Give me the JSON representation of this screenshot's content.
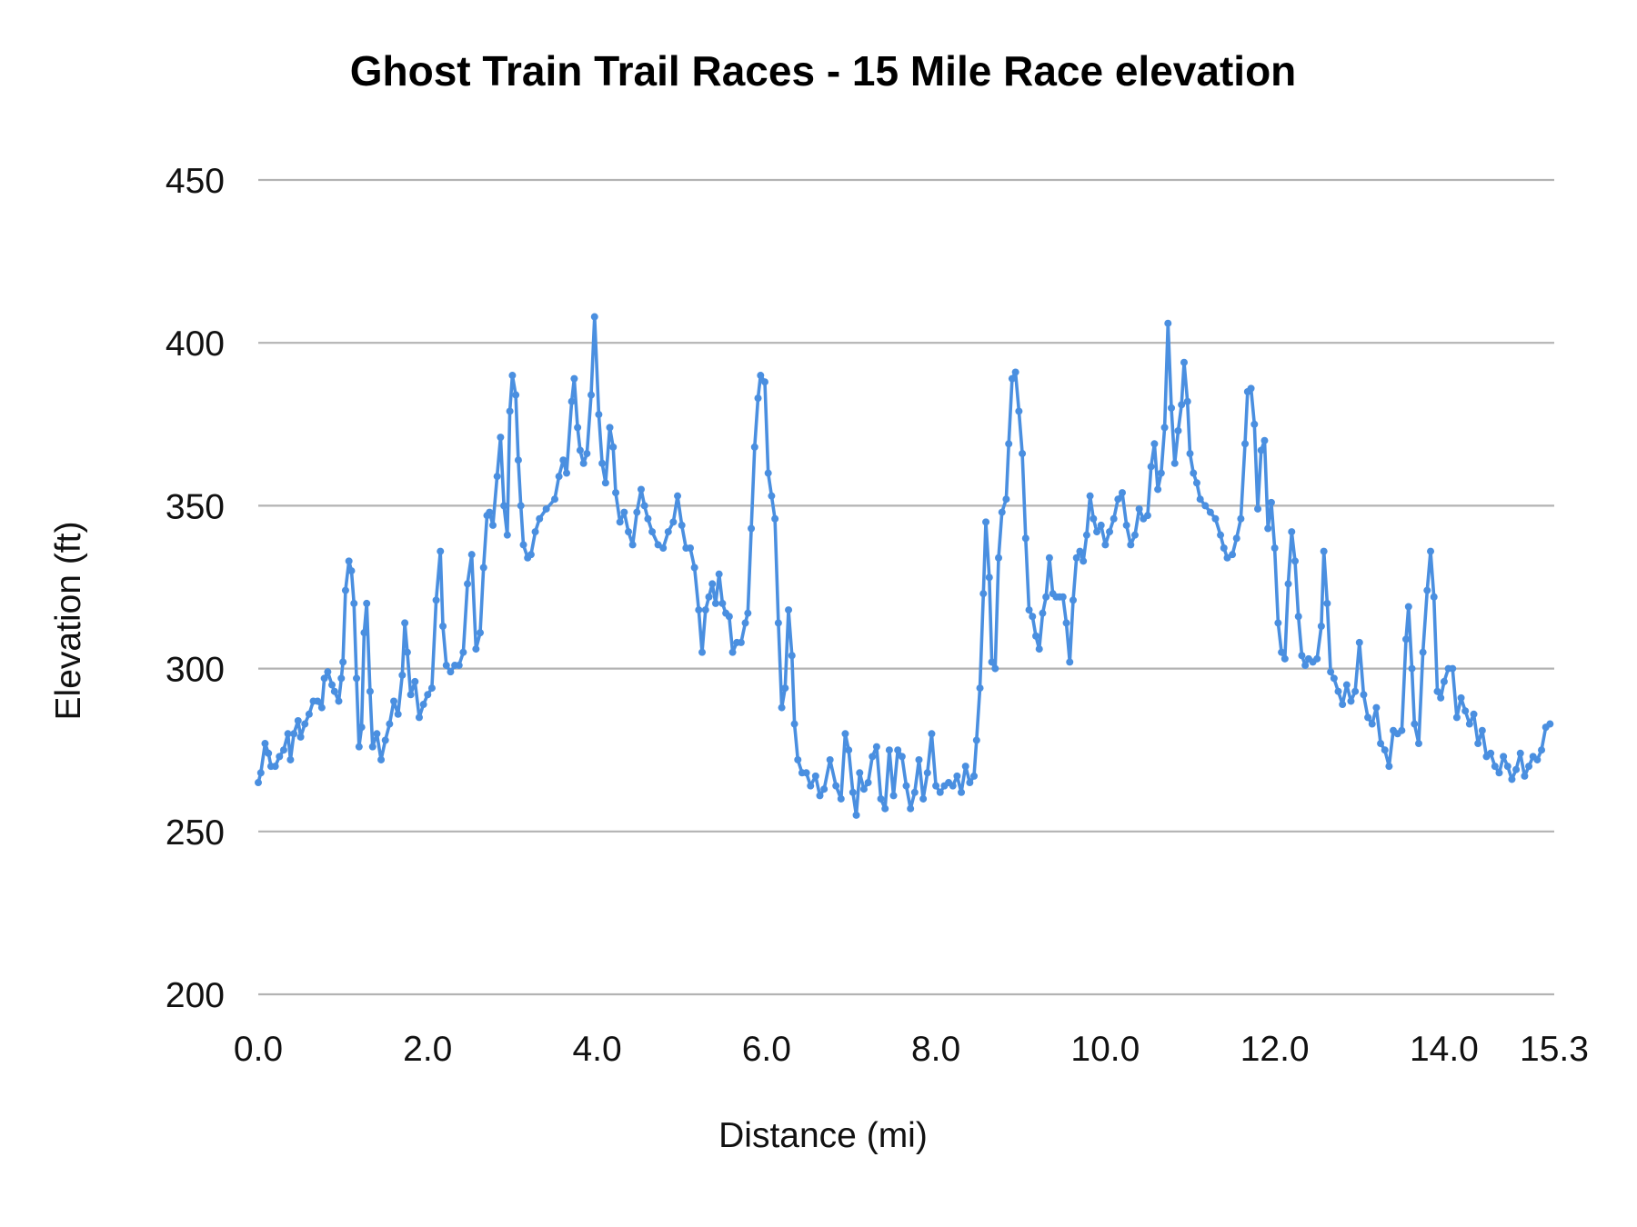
{
  "chart_data": {
    "type": "line",
    "title": "Ghost Train Trail Races - 15 Mile Race elevation",
    "xlabel": "Distance (mi)",
    "ylabel": "Elevation (ft)",
    "xlim": [
      0,
      15.3
    ],
    "ylim": [
      200,
      450
    ],
    "x_ticks": [
      "0.0",
      "2.0",
      "4.0",
      "6.0",
      "8.0",
      "10.0",
      "12.0",
      "14.0",
      "15.3"
    ],
    "x_tick_values": [
      0,
      2,
      4,
      6,
      8,
      10,
      12,
      14,
      15.3
    ],
    "y_ticks": [
      "200",
      "250",
      "300",
      "350",
      "400",
      "450"
    ],
    "y_tick_values": [
      200,
      250,
      300,
      350,
      400,
      450
    ],
    "grid": "horizontal",
    "legend": "none",
    "markers": true,
    "color": "#4a8fe0",
    "grid_color": "#b3b3b3",
    "points": [
      [
        0,
        265
      ],
      [
        0.03,
        268
      ],
      [
        0.08,
        277
      ],
      [
        0.12,
        274
      ],
      [
        0.15,
        270
      ],
      [
        0.2,
        270
      ],
      [
        0.25,
        273
      ],
      [
        0.3,
        275
      ],
      [
        0.35,
        280
      ],
      [
        0.38,
        272
      ],
      [
        0.42,
        280
      ],
      [
        0.47,
        284
      ],
      [
        0.5,
        279
      ],
      [
        0.55,
        283
      ],
      [
        0.6,
        286
      ],
      [
        0.65,
        290
      ],
      [
        0.7,
        290
      ],
      [
        0.75,
        288
      ],
      [
        0.78,
        297
      ],
      [
        0.82,
        299
      ],
      [
        0.87,
        295
      ],
      [
        0.9,
        293
      ],
      [
        0.95,
        290
      ],
      [
        0.98,
        297
      ],
      [
        1.0,
        302
      ],
      [
        1.03,
        324
      ],
      [
        1.07,
        333
      ],
      [
        1.1,
        330
      ],
      [
        1.13,
        320
      ],
      [
        1.16,
        297
      ],
      [
        1.19,
        276
      ],
      [
        1.22,
        282
      ],
      [
        1.25,
        311
      ],
      [
        1.28,
        320
      ],
      [
        1.32,
        293
      ],
      [
        1.35,
        276
      ],
      [
        1.4,
        280
      ],
      [
        1.45,
        272
      ],
      [
        1.5,
        278
      ],
      [
        1.55,
        283
      ],
      [
        1.6,
        290
      ],
      [
        1.65,
        286
      ],
      [
        1.7,
        298
      ],
      [
        1.73,
        314
      ],
      [
        1.76,
        305
      ],
      [
        1.8,
        292
      ],
      [
        1.85,
        296
      ],
      [
        1.9,
        285
      ],
      [
        1.95,
        289
      ],
      [
        2.0,
        292
      ],
      [
        2.05,
        294
      ],
      [
        2.1,
        321
      ],
      [
        2.15,
        336
      ],
      [
        2.18,
        313
      ],
      [
        2.22,
        301
      ],
      [
        2.27,
        299
      ],
      [
        2.32,
        301
      ],
      [
        2.37,
        301
      ],
      [
        2.42,
        305
      ],
      [
        2.47,
        326
      ],
      [
        2.52,
        335
      ],
      [
        2.57,
        306
      ],
      [
        2.62,
        311
      ],
      [
        2.66,
        331
      ],
      [
        2.7,
        347
      ],
      [
        2.73,
        348
      ],
      [
        2.77,
        344
      ],
      [
        2.82,
        359
      ],
      [
        2.86,
        371
      ],
      [
        2.9,
        350
      ],
      [
        2.94,
        341
      ],
      [
        2.97,
        379
      ],
      [
        3.0,
        390
      ],
      [
        3.04,
        384
      ],
      [
        3.07,
        364
      ],
      [
        3.1,
        350
      ],
      [
        3.13,
        338
      ],
      [
        3.18,
        334
      ],
      [
        3.22,
        335
      ],
      [
        3.27,
        342
      ],
      [
        3.32,
        346
      ],
      [
        3.4,
        349
      ],
      [
        3.5,
        352
      ],
      [
        3.55,
        359
      ],
      [
        3.6,
        364
      ],
      [
        3.64,
        360
      ],
      [
        3.7,
        382
      ],
      [
        3.73,
        389
      ],
      [
        3.77,
        374
      ],
      [
        3.8,
        367
      ],
      [
        3.84,
        363
      ],
      [
        3.88,
        366
      ],
      [
        3.93,
        384
      ],
      [
        3.97,
        408
      ],
      [
        4.02,
        378
      ],
      [
        4.06,
        363
      ],
      [
        4.1,
        357
      ],
      [
        4.15,
        374
      ],
      [
        4.19,
        368
      ],
      [
        4.22,
        354
      ],
      [
        4.27,
        345
      ],
      [
        4.32,
        348
      ],
      [
        4.37,
        342
      ],
      [
        4.42,
        338
      ],
      [
        4.47,
        348
      ],
      [
        4.52,
        355
      ],
      [
        4.56,
        350
      ],
      [
        4.6,
        346
      ],
      [
        4.65,
        342
      ],
      [
        4.72,
        338
      ],
      [
        4.78,
        337
      ],
      [
        4.84,
        342
      ],
      [
        4.9,
        345
      ],
      [
        4.95,
        353
      ],
      [
        5.0,
        344
      ],
      [
        5.05,
        337
      ],
      [
        5.1,
        337
      ],
      [
        5.15,
        331
      ],
      [
        5.2,
        318
      ],
      [
        5.24,
        305
      ],
      [
        5.28,
        318
      ],
      [
        5.32,
        322
      ],
      [
        5.36,
        326
      ],
      [
        5.4,
        320
      ],
      [
        5.44,
        329
      ],
      [
        5.48,
        320
      ],
      [
        5.52,
        317
      ],
      [
        5.56,
        316
      ],
      [
        5.6,
        305
      ],
      [
        5.65,
        308
      ],
      [
        5.7,
        308
      ],
      [
        5.75,
        314
      ],
      [
        5.78,
        317
      ],
      [
        5.82,
        343
      ],
      [
        5.86,
        368
      ],
      [
        5.9,
        383
      ],
      [
        5.93,
        390
      ],
      [
        5.98,
        388
      ],
      [
        6.02,
        360
      ],
      [
        6.06,
        353
      ],
      [
        6.1,
        346
      ],
      [
        6.14,
        314
      ],
      [
        6.18,
        288
      ],
      [
        6.22,
        294
      ],
      [
        6.26,
        318
      ],
      [
        6.3,
        304
      ],
      [
        6.33,
        283
      ],
      [
        6.37,
        272
      ],
      [
        6.42,
        268
      ],
      [
        6.47,
        268
      ],
      [
        6.52,
        264
      ],
      [
        6.58,
        267
      ],
      [
        6.63,
        261
      ],
      [
        6.68,
        263
      ],
      [
        6.75,
        272
      ],
      [
        6.82,
        264
      ],
      [
        6.88,
        260
      ],
      [
        6.93,
        280
      ],
      [
        6.97,
        275
      ],
      [
        7.02,
        262
      ],
      [
        7.06,
        255
      ],
      [
        7.1,
        268
      ],
      [
        7.15,
        263
      ],
      [
        7.2,
        265
      ],
      [
        7.25,
        273
      ],
      [
        7.3,
        276
      ],
      [
        7.35,
        260
      ],
      [
        7.4,
        257
      ],
      [
        7.45,
        275
      ],
      [
        7.5,
        261
      ],
      [
        7.55,
        275
      ],
      [
        7.6,
        273
      ],
      [
        7.65,
        264
      ],
      [
        7.7,
        257
      ],
      [
        7.75,
        262
      ],
      [
        7.8,
        272
      ],
      [
        7.85,
        260
      ],
      [
        7.9,
        268
      ],
      [
        7.95,
        280
      ],
      [
        8.0,
        264
      ],
      [
        8.05,
        262
      ],
      [
        8.1,
        264
      ],
      [
        8.15,
        265
      ],
      [
        8.2,
        264
      ],
      [
        8.25,
        267
      ],
      [
        8.3,
        262
      ],
      [
        8.35,
        270
      ],
      [
        8.4,
        265
      ],
      [
        8.45,
        267
      ],
      [
        8.48,
        278
      ],
      [
        8.52,
        294
      ],
      [
        8.56,
        323
      ],
      [
        8.59,
        345
      ],
      [
        8.63,
        328
      ],
      [
        8.66,
        302
      ],
      [
        8.7,
        300
      ],
      [
        8.74,
        334
      ],
      [
        8.78,
        348
      ],
      [
        8.83,
        352
      ],
      [
        8.86,
        369
      ],
      [
        8.9,
        389
      ],
      [
        8.94,
        391
      ],
      [
        8.98,
        379
      ],
      [
        9.02,
        366
      ],
      [
        9.06,
        340
      ],
      [
        9.1,
        318
      ],
      [
        9.14,
        316
      ],
      [
        9.18,
        310
      ],
      [
        9.22,
        306
      ],
      [
        9.26,
        317
      ],
      [
        9.3,
        322
      ],
      [
        9.34,
        334
      ],
      [
        9.38,
        323
      ],
      [
        9.42,
        322
      ],
      [
        9.46,
        322
      ],
      [
        9.5,
        322
      ],
      [
        9.54,
        314
      ],
      [
        9.58,
        302
      ],
      [
        9.62,
        321
      ],
      [
        9.66,
        334
      ],
      [
        9.7,
        336
      ],
      [
        9.74,
        333
      ],
      [
        9.78,
        341
      ],
      [
        9.82,
        353
      ],
      [
        9.86,
        346
      ],
      [
        9.9,
        342
      ],
      [
        9.95,
        344
      ],
      [
        10.0,
        338
      ],
      [
        10.05,
        342
      ],
      [
        10.1,
        346
      ],
      [
        10.15,
        352
      ],
      [
        10.2,
        354
      ],
      [
        10.25,
        344
      ],
      [
        10.3,
        338
      ],
      [
        10.35,
        341
      ],
      [
        10.4,
        349
      ],
      [
        10.45,
        346
      ],
      [
        10.5,
        347
      ],
      [
        10.54,
        362
      ],
      [
        10.58,
        369
      ],
      [
        10.62,
        355
      ],
      [
        10.66,
        360
      ],
      [
        10.7,
        374
      ],
      [
        10.74,
        406
      ],
      [
        10.78,
        380
      ],
      [
        10.82,
        363
      ],
      [
        10.86,
        373
      ],
      [
        10.9,
        381
      ],
      [
        10.93,
        394
      ],
      [
        10.97,
        382
      ],
      [
        11.0,
        366
      ],
      [
        11.04,
        360
      ],
      [
        11.08,
        357
      ],
      [
        11.12,
        352
      ],
      [
        11.18,
        350
      ],
      [
        11.24,
        348
      ],
      [
        11.3,
        346
      ],
      [
        11.36,
        341
      ],
      [
        11.4,
        337
      ],
      [
        11.44,
        334
      ],
      [
        11.5,
        335
      ],
      [
        11.55,
        340
      ],
      [
        11.6,
        346
      ],
      [
        11.65,
        369
      ],
      [
        11.68,
        385
      ],
      [
        11.72,
        386
      ],
      [
        11.76,
        375
      ],
      [
        11.8,
        349
      ],
      [
        11.84,
        367
      ],
      [
        11.88,
        370
      ],
      [
        11.92,
        343
      ],
      [
        11.96,
        351
      ],
      [
        12.0,
        337
      ],
      [
        12.04,
        314
      ],
      [
        12.08,
        305
      ],
      [
        12.12,
        303
      ],
      [
        12.16,
        326
      ],
      [
        12.2,
        342
      ],
      [
        12.24,
        333
      ],
      [
        12.28,
        316
      ],
      [
        12.32,
        304
      ],
      [
        12.36,
        301
      ],
      [
        12.4,
        303
      ],
      [
        12.45,
        302
      ],
      [
        12.5,
        303
      ],
      [
        12.55,
        313
      ],
      [
        12.58,
        336
      ],
      [
        12.62,
        320
      ],
      [
        12.66,
        299
      ],
      [
        12.7,
        297
      ],
      [
        12.75,
        293
      ],
      [
        12.8,
        289
      ],
      [
        12.85,
        295
      ],
      [
        12.9,
        290
      ],
      [
        12.95,
        293
      ],
      [
        13.0,
        308
      ],
      [
        13.05,
        292
      ],
      [
        13.1,
        285
      ],
      [
        13.15,
        283
      ],
      [
        13.2,
        288
      ],
      [
        13.25,
        277
      ],
      [
        13.3,
        275
      ],
      [
        13.35,
        270
      ],
      [
        13.4,
        281
      ],
      [
        13.45,
        280
      ],
      [
        13.5,
        281
      ],
      [
        13.55,
        309
      ],
      [
        13.58,
        319
      ],
      [
        13.62,
        300
      ],
      [
        13.65,
        283
      ],
      [
        13.7,
        277
      ],
      [
        13.75,
        305
      ],
      [
        13.8,
        324
      ],
      [
        13.84,
        336
      ],
      [
        13.88,
        322
      ],
      [
        13.92,
        293
      ],
      [
        13.96,
        291
      ],
      [
        14.0,
        296
      ],
      [
        14.05,
        300
      ],
      [
        14.1,
        300
      ],
      [
        14.15,
        285
      ],
      [
        14.2,
        291
      ],
      [
        14.25,
        287
      ],
      [
        14.3,
        283
      ],
      [
        14.35,
        286
      ],
      [
        14.4,
        277
      ],
      [
        14.45,
        281
      ],
      [
        14.5,
        273
      ],
      [
        14.55,
        274
      ],
      [
        14.6,
        270
      ],
      [
        14.65,
        268
      ],
      [
        14.7,
        273
      ],
      [
        14.75,
        270
      ],
      [
        14.8,
        266
      ],
      [
        14.85,
        269
      ],
      [
        14.9,
        274
      ],
      [
        14.95,
        267
      ],
      [
        15.0,
        270
      ],
      [
        15.05,
        273
      ],
      [
        15.1,
        272
      ],
      [
        15.15,
        275
      ],
      [
        15.2,
        282
      ],
      [
        15.25,
        283
      ]
    ]
  }
}
